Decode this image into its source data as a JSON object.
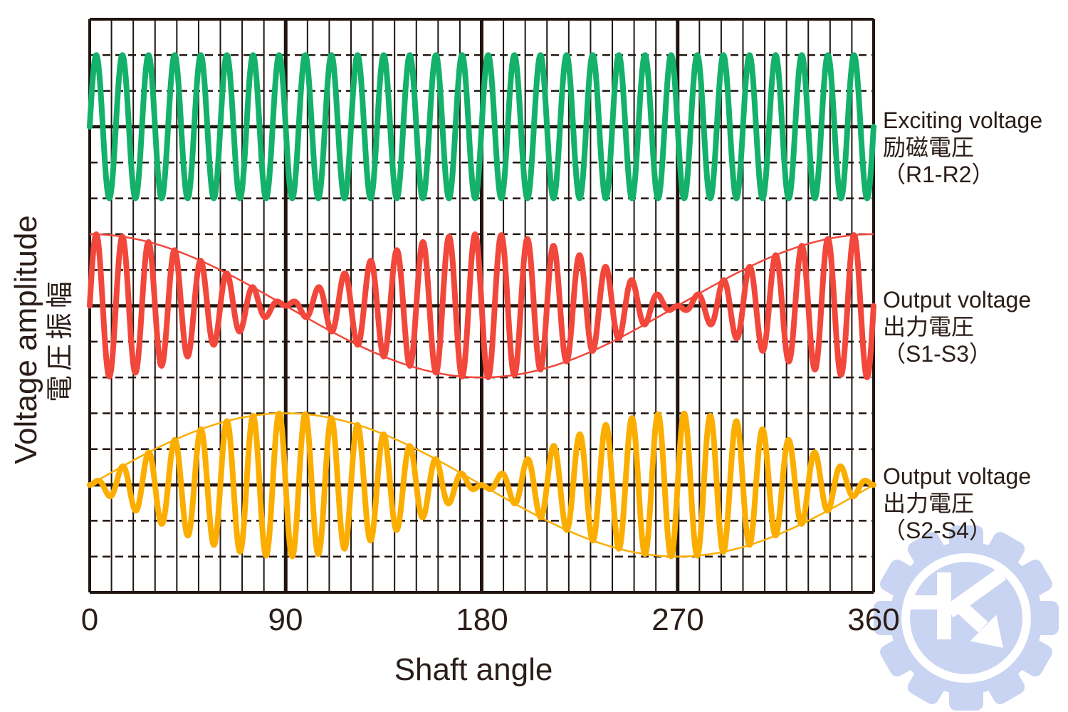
{
  "page": {
    "background": "#ffffff",
    "text_color": "#2b1d18"
  },
  "y_axis": {
    "label_en": "Voltage amplitude",
    "label_ja": "電圧振幅"
  },
  "x_axis": {
    "label": "Shaft angle",
    "tick_labels": [
      "0",
      "90",
      "180",
      "270",
      "360"
    ]
  },
  "series_labels": [
    {
      "title": "Exciting voltage",
      "title_ja": "励磁電圧",
      "terminals": "（R1-R2）"
    },
    {
      "title": "Output voltage",
      "title_ja": "出力電圧",
      "terminals": "（S1-S3）"
    },
    {
      "title": "Output voltage",
      "title_ja": "出力電圧",
      "terminals": "（S2-S4）"
    }
  ],
  "chart_data": {
    "type": "line",
    "x": {
      "label": "Shaft angle",
      "unit": "deg",
      "min": 0,
      "max": 360,
      "ticks": [
        0,
        90,
        180,
        270,
        360
      ],
      "minor_grid_step": 10
    },
    "y": {
      "label": "Voltage amplitude",
      "amplitude_gridlines": 2
    },
    "carrier_cycles_per_rev": 30,
    "series": [
      {
        "name": "Exciting voltage (R1-R2)",
        "color": "#14b16b",
        "modulation": "none",
        "peak": 1,
        "envelope_line": false
      },
      {
        "name": "Output voltage (S1-S3)",
        "color": "#f2473b",
        "modulation": "cos",
        "peak": 1,
        "envelope_line": true
      },
      {
        "name": "Output voltage (S2-S4)",
        "color": "#fbae00",
        "modulation": "sin",
        "peak": 1,
        "envelope_line": true
      }
    ],
    "grid": {
      "color": "#211510",
      "minor_style": "dashed",
      "major_style": "solid",
      "legend_position": "right"
    }
  },
  "watermark": {
    "fill": "#c9d4f2",
    "inner": "#ffffff",
    "glyph": "K-arrow-gear"
  }
}
